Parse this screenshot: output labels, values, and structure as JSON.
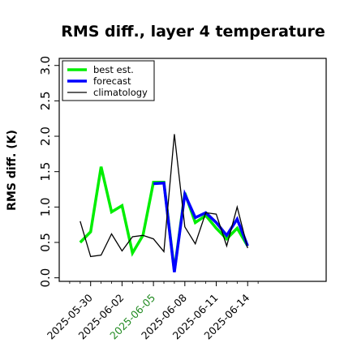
{
  "chart_data": {
    "type": "line",
    "title": "RMS diff., layer 4 temperature",
    "xlabel": "",
    "ylabel": "RMS diff. (K)",
    "ylim": [
      -0.05,
      3.1
    ],
    "yticks": [
      0.0,
      0.5,
      1.0,
      1.5,
      2.0,
      2.5,
      3.0
    ],
    "ytick_labels": [
      "0.0",
      "0.5",
      "1.0",
      "1.5",
      "2.0",
      "2.5",
      "3.0"
    ],
    "xlim": [
      0,
      25.5
    ],
    "xticks": [
      {
        "pos": 3,
        "label": "2025-05-30",
        "color": "#000000"
      },
      {
        "pos": 6,
        "label": "2025-06-02",
        "color": "#000000"
      },
      {
        "pos": 9,
        "label": "2025-06-05",
        "color": "#228b22"
      },
      {
        "pos": 12,
        "label": "2025-06-08",
        "color": "#000000"
      },
      {
        "pos": 15,
        "label": "2025-06-11",
        "color": "#000000"
      },
      {
        "pos": 18,
        "label": "2025-06-14",
        "color": "#000000"
      }
    ],
    "legend": {
      "position": "top-left"
    },
    "series": [
      {
        "name": "best est.",
        "color": "#00ee00",
        "width": 3.5,
        "x": [
          2,
          3,
          4,
          5,
          6,
          7,
          8,
          9,
          10,
          11,
          12,
          13,
          14,
          15,
          16,
          17,
          18
        ],
        "values": [
          0.5,
          0.65,
          1.57,
          0.93,
          1.02,
          0.35,
          0.6,
          1.35,
          1.35,
          0.1,
          1.2,
          0.78,
          0.88,
          0.7,
          0.55,
          0.7,
          0.45
        ]
      },
      {
        "name": "forecast",
        "color": "#0000ff",
        "width": 3.5,
        "x": [
          9,
          10,
          11,
          12,
          13,
          14,
          15,
          16,
          17,
          18
        ],
        "values": [
          1.33,
          1.34,
          0.08,
          1.18,
          0.85,
          0.92,
          0.78,
          0.6,
          0.83,
          0.45
        ]
      },
      {
        "name": "climatology",
        "color": "#000000",
        "width": 1.3,
        "x": [
          2,
          3,
          4,
          5,
          6,
          7,
          8,
          9,
          10,
          11,
          12,
          13,
          14,
          15,
          16,
          17,
          18
        ],
        "values": [
          0.8,
          0.3,
          0.32,
          0.62,
          0.38,
          0.58,
          0.6,
          0.55,
          0.37,
          2.03,
          0.72,
          0.48,
          0.92,
          0.9,
          0.45,
          1.0,
          0.42
        ]
      }
    ]
  }
}
